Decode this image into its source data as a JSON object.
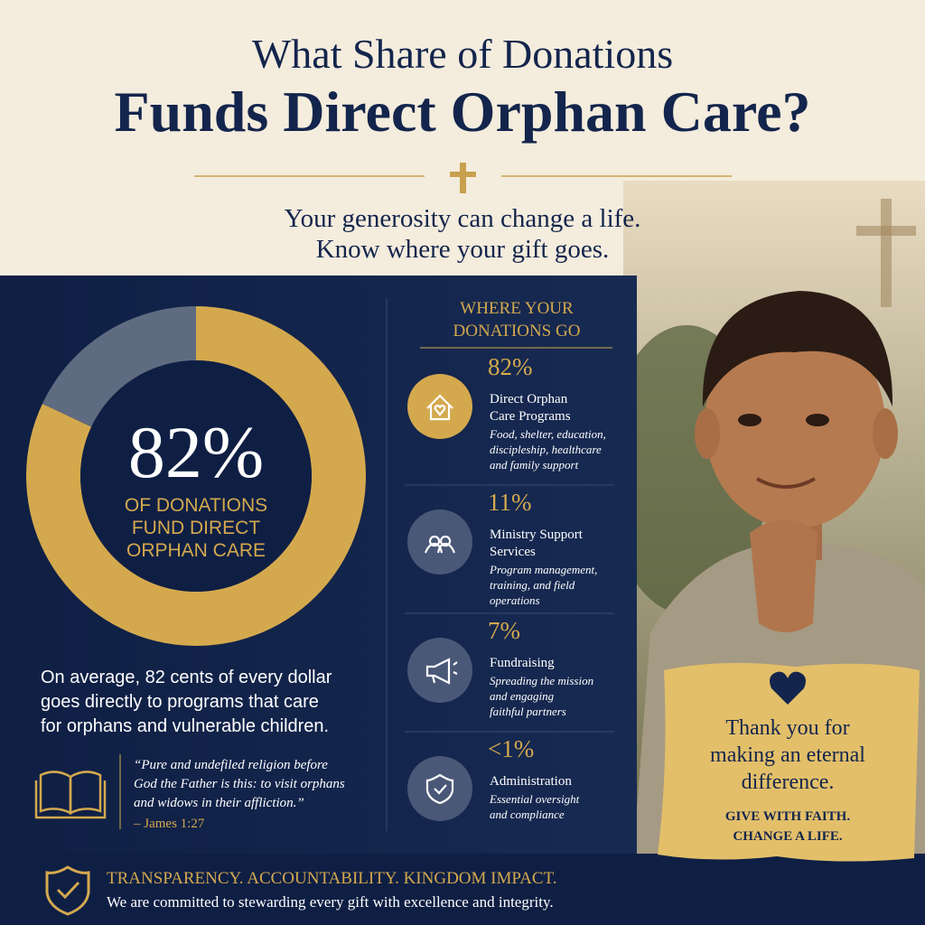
{
  "header": {
    "title_line1": "What Share of Donations",
    "title_line2": "Funds Direct Orphan Care?",
    "subtitle_line1": "Your generosity can change a life.",
    "subtitle_line2": "Know where your gift goes."
  },
  "chart_data": {
    "type": "pie",
    "categories": [
      null,
      null
    ],
    "values": [
      82,
      18
    ],
    "colors": [
      "#d4a94e",
      "#5f6b80"
    ],
    "center_label": "82%",
    "center_caption": [
      "OF DONATIONS",
      "FUND DIRECT",
      "ORPHAN CARE"
    ]
  },
  "summary": [
    "On average, 82 cents of every dollar",
    "goes directly to programs that care",
    "for orphans and vulnerable children."
  ],
  "quote": {
    "lines": [
      "“Pure and undefiled religion before",
      "God the Father is this: to visit orphans",
      "and widows in their affliction.”"
    ],
    "source": "– James 1:27"
  },
  "breakdown": {
    "heading": [
      "WHERE YOUR",
      "DONATIONS GO"
    ],
    "items": [
      {
        "percent": "82%",
        "title": [
          "Direct Orphan",
          "Care Programs"
        ],
        "desc": [
          "Food, shelter, education,",
          "discipleship, healthcare",
          "and family support"
        ]
      },
      {
        "percent": "11%",
        "title": [
          "Ministry Support",
          "Services"
        ],
        "desc": [
          "Program management,",
          "training, and field",
          "operations"
        ]
      },
      {
        "percent": "7%",
        "title": [
          "Fundraising"
        ],
        "desc": [
          "Spreading the mission",
          "and engaging",
          "faithful partners"
        ]
      },
      {
        "percent": "<1%",
        "title": [
          "Administration"
        ],
        "desc": [
          "Essential oversight",
          "and compliance"
        ]
      }
    ]
  },
  "thanks": {
    "lines": [
      "Thank you for",
      "making an eternal",
      "difference."
    ],
    "tagline": [
      "GIVE WITH FAITH.",
      "CHANGE A LIFE."
    ]
  },
  "footer": {
    "headline": "TRANSPARENCY. ACCOUNTABILITY. KINGDOM IMPACT.",
    "text": "We are committed to stewarding every gift with excellence and integrity."
  }
}
